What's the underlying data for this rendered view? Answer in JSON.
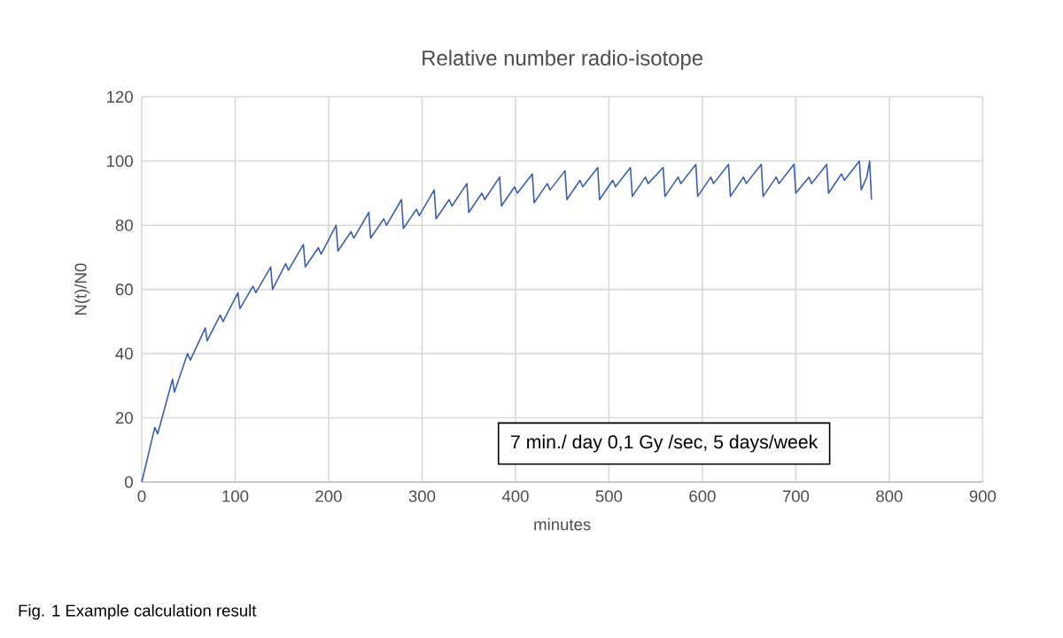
{
  "chart_data": {
    "type": "line",
    "title": "Relative number radio-isotope",
    "xlabel": "minutes",
    "ylabel": "N(t)/N0",
    "annotations": [
      "7 min./ day 0,1 Gy /sec, 5 days/week",
      "Fig. 1 Example calculation result"
    ],
    "xlim": [
      0,
      900
    ],
    "xticks": [
      0,
      100,
      200,
      300,
      400,
      500,
      600,
      700,
      800,
      900
    ],
    "ylim": [
      0,
      120
    ],
    "yticks": [
      0,
      20,
      40,
      60,
      80,
      100,
      120
    ],
    "grid": true,
    "marker": "none",
    "line_style": "solid",
    "series": [
      {
        "color": "#3a5fa8",
        "x": [
          0,
          14,
          17,
          33,
          35,
          49,
          52,
          68,
          70,
          84,
          87,
          103,
          105,
          119,
          122,
          138,
          140,
          154,
          157,
          173,
          175,
          189,
          192,
          208,
          210,
          224,
          227,
          243,
          245,
          259,
          262,
          278,
          280,
          294,
          297,
          313,
          315,
          329,
          332,
          348,
          350,
          364,
          367,
          383,
          385,
          399,
          402,
          418,
          420,
          434,
          437,
          453,
          455,
          469,
          472,
          488,
          490,
          504,
          507,
          523,
          525,
          539,
          542,
          558,
          560,
          574,
          577,
          593,
          595,
          609,
          612,
          628,
          630,
          644,
          647,
          663,
          665,
          679,
          682,
          698,
          700,
          714,
          717,
          733,
          735,
          749,
          752,
          768,
          770,
          776,
          779,
          781
        ],
        "values": [
          0,
          17,
          15,
          32,
          28,
          40,
          38,
          48,
          44,
          52,
          50,
          59,
          54,
          61,
          59,
          67,
          60,
          68,
          66,
          74,
          67,
          73,
          71,
          80,
          72,
          78,
          76,
          84,
          76,
          82,
          80,
          88,
          79,
          85,
          83,
          91,
          82,
          88,
          86,
          93,
          84,
          90,
          88,
          95,
          86,
          92,
          90,
          96,
          87,
          93,
          91,
          97,
          88,
          94,
          92,
          98,
          88,
          94,
          92,
          98,
          89,
          95,
          93,
          98,
          89,
          95,
          93,
          99,
          89,
          95,
          93,
          99,
          89,
          95,
          93,
          99,
          89,
          95,
          93,
          99,
          90,
          95,
          93,
          99,
          90,
          96,
          94,
          100,
          91,
          95,
          100,
          88
        ]
      }
    ]
  }
}
